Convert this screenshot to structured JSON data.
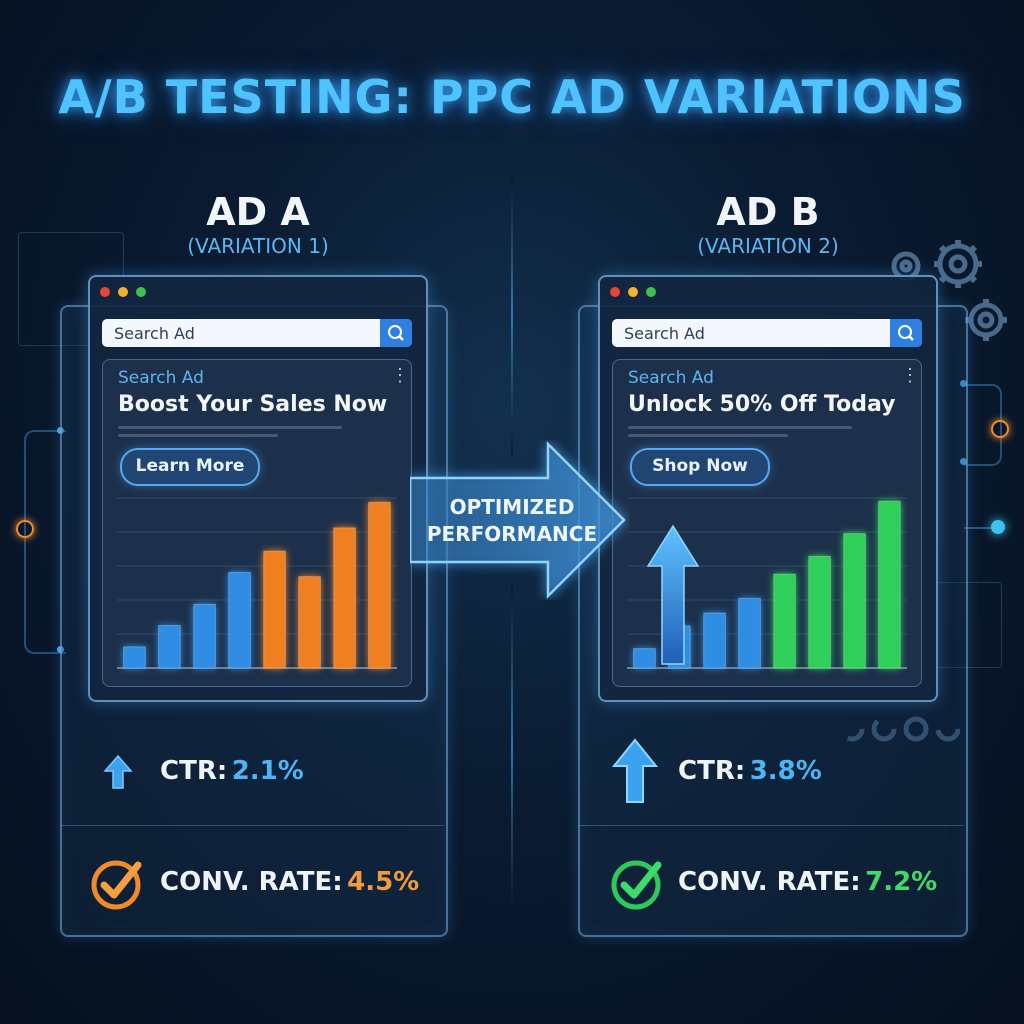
{
  "title": "A/B TESTING: PPC AD VARIATIONS",
  "arrow_label": "OPTIMIZED PERFORMANCE",
  "colors": {
    "accent_blue": "#4fc3ff",
    "bar_blue": "#2f8de4",
    "bar_orange": "#f07f22",
    "bar_green": "#2fcf5a",
    "value_a_ctr": "#4db4f5",
    "value_a_conv": "#f59a3a",
    "value_b_ctr": "#4db4f5",
    "value_b_conv": "#3ddc6a"
  },
  "ad_a": {
    "title": "AD A",
    "subtitle": "(VARIATION 1)",
    "search_placeholder": "Search Ad",
    "card_label": "Search Ad",
    "headline": "Boost Your Sales Now",
    "cta": "Learn More",
    "ctr_label": "CTR:",
    "ctr_value": "2.1%",
    "conv_label": "CONV. RATE:",
    "conv_value": "4.5%"
  },
  "ad_b": {
    "title": "AD B",
    "subtitle": "(VARIATION 2)",
    "search_placeholder": "Search Ad",
    "card_label": "Search Ad",
    "headline": "Unlock 50% Off Today",
    "cta": "Shop Now",
    "ctr_label": "CTR:",
    "ctr_value": "3.8%",
    "conv_label": "CONV. RATE:",
    "conv_value": "7.2%"
  },
  "chart_data": [
    {
      "type": "bar",
      "series": [
        {
          "values": [
            1,
            2,
            3,
            4.5,
            5.5,
            4.3,
            6.6,
            7.8
          ],
          "colors": [
            "blue",
            "blue",
            "blue",
            "blue",
            "orange",
            "orange",
            "orange",
            "orange"
          ]
        }
      ],
      "ylim": [
        0,
        8
      ],
      "grid": true
    },
    {
      "type": "bar",
      "series": [
        {
          "values": [
            1.2,
            2.6,
            3.4,
            4.3,
            5.8,
            6.9,
            8.3,
            10.3
          ],
          "colors": [
            "blue",
            "blue",
            "blue",
            "blue",
            "green",
            "green",
            "green",
            "green"
          ]
        }
      ],
      "ylim": [
        0,
        10.5
      ],
      "grid": true
    }
  ]
}
